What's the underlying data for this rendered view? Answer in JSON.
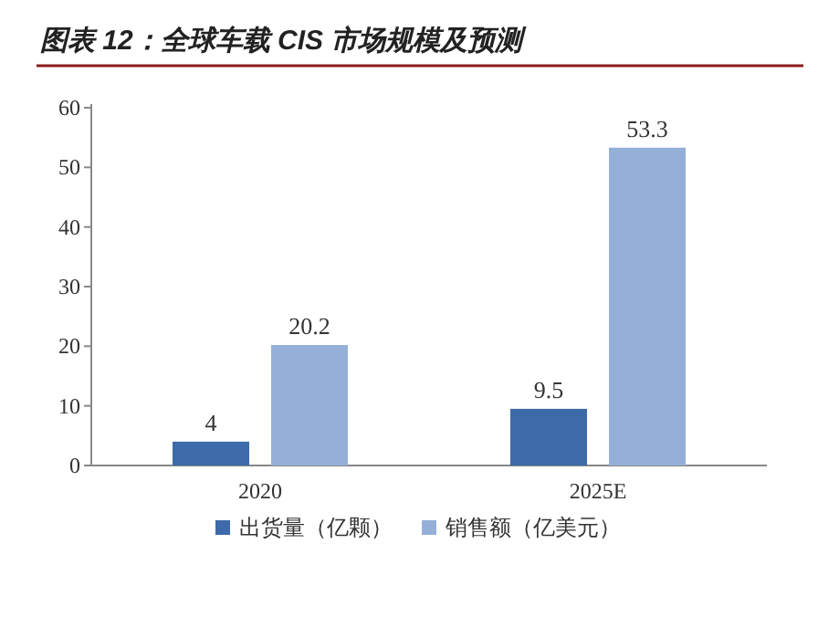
{
  "chart_data": {
    "type": "bar",
    "title": "图表 12：全球车载 CIS 市场规模及预测",
    "categories": [
      "2020",
      "2025E"
    ],
    "series": [
      {
        "name": "出货量（亿颗）",
        "color": "#3e6aa9",
        "values": [
          4,
          9.5
        ]
      },
      {
        "name": "销售额（亿美元）",
        "color": "#95b0d8",
        "values": [
          20.2,
          53.3
        ]
      }
    ],
    "ylim": [
      0,
      60
    ],
    "yticks": [
      0,
      10,
      20,
      30,
      40,
      50,
      60
    ],
    "data_labels": true,
    "legend": "bottom",
    "grid": false
  }
}
